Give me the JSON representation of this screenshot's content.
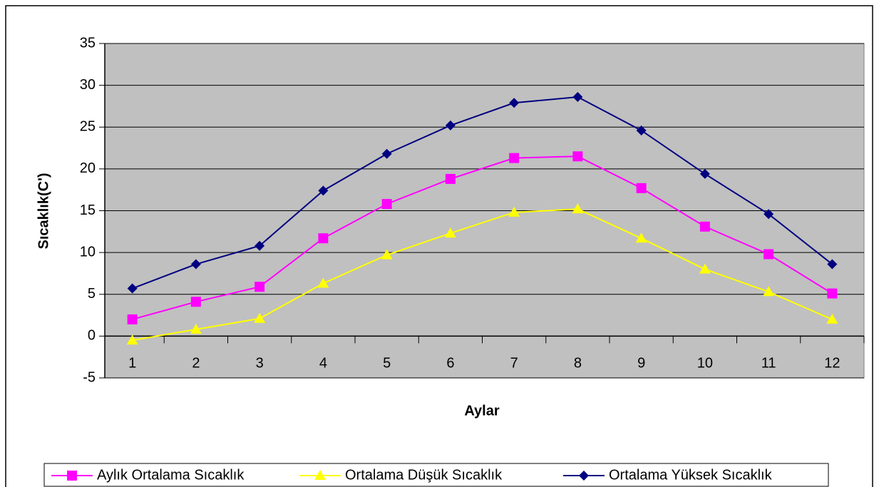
{
  "chart_data": {
    "type": "line",
    "x_label": "Aylar",
    "y_label": "Sıcaklık(C')",
    "categories": [
      "1",
      "2",
      "3",
      "4",
      "5",
      "6",
      "7",
      "8",
      "9",
      "10",
      "11",
      "12"
    ],
    "series": [
      {
        "name": "Aylık Ortalama Sıcaklık",
        "color": "#ff00ff",
        "marker": "square",
        "values": [
          2.0,
          4.1,
          5.9,
          11.7,
          15.8,
          18.8,
          21.3,
          21.5,
          17.7,
          13.1,
          9.8,
          5.1
        ]
      },
      {
        "name": "Ortalama Düşük Sıcaklık",
        "color": "#ffff00",
        "marker": "triangle",
        "values": [
          -0.5,
          0.8,
          2.1,
          6.3,
          9.7,
          12.3,
          14.8,
          15.2,
          11.7,
          8.0,
          5.3,
          2.0
        ]
      },
      {
        "name": "Ortalama Yüksek Sıcaklık",
        "color": "#000080",
        "marker": "diamond",
        "values": [
          5.7,
          8.6,
          10.8,
          17.4,
          21.8,
          25.2,
          27.9,
          28.6,
          24.6,
          19.4,
          14.6,
          8.6
        ]
      }
    ],
    "ylim": [
      -5,
      35
    ],
    "yticks": [
      -5,
      0,
      5,
      10,
      15,
      20,
      25,
      30,
      35
    ],
    "grid": true,
    "plot_background": "#c0c0c0",
    "legend": "bottom"
  }
}
